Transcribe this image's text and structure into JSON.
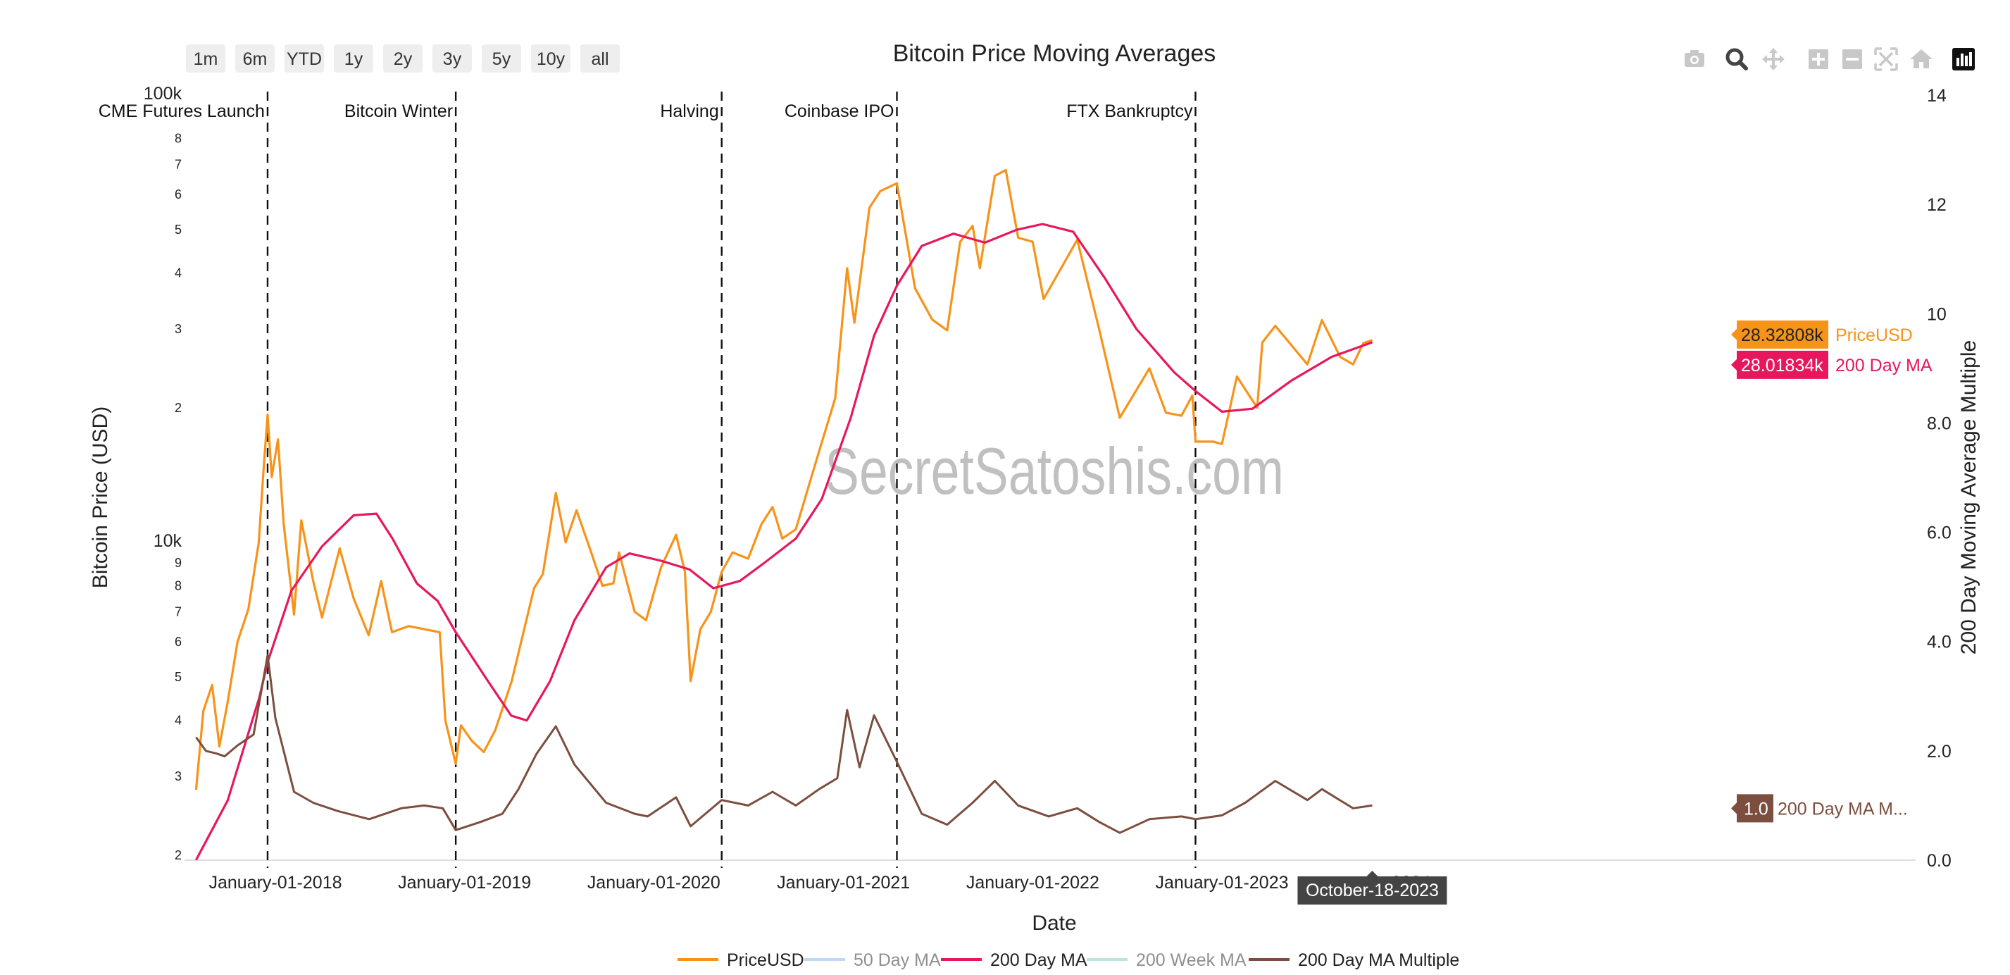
{
  "range_selector": [
    "1m",
    "6m",
    "YTD",
    "1y",
    "2y",
    "3y",
    "5y",
    "10y",
    "all"
  ],
  "modebar": [
    "camera-icon",
    "zoom-icon",
    "pan-icon",
    "zoom-in-icon",
    "zoom-out-icon",
    "autoscale-icon",
    "reset-axes-icon",
    "plotly-logo-icon"
  ],
  "watermark": "SecretSatoshis.com",
  "hover": {
    "price_value": "28.32808k",
    "price_name": "PriceUSD",
    "ma_value": "28.01834k",
    "ma_name": "200 Day MA",
    "mult_value": "1.0",
    "mult_name": "200 Day MA M...",
    "date": "October-18-2023"
  },
  "colors": {
    "price": "#f7931a",
    "ma50": "#7fb2f0",
    "ma200": "#e8175d",
    "ma200w": "#7fc8c0",
    "multiple": "#7b4e3f",
    "hover_date_bg": "#444444"
  },
  "chart_data": {
    "type": "line",
    "title": "Bitcoin Price Moving Averages",
    "xlabel": "Date",
    "ylabel": "Bitcoin Price (USD)",
    "y2label": "200 Day Moving Average Multiple",
    "x_tick_labels": [
      "January-01-2018",
      "January-01-2019",
      "January-01-2020",
      "January-01-2021",
      "January-01-2022",
      "January-01-2023",
      "2024"
    ],
    "y_scale": "log",
    "y_tick_labels": [
      "2",
      "3",
      "4",
      "5",
      "6",
      "7",
      "8",
      "9",
      "10k",
      "2",
      "3",
      "4",
      "5",
      "6",
      "7",
      "8",
      "100k"
    ],
    "y2_tick_labels": [
      "0.0",
      "2.0",
      "4.0",
      "6.0",
      "8.0",
      "10",
      "12",
      "14"
    ],
    "y2lim": [
      0,
      14
    ],
    "legend_position": "bottom",
    "legend": [
      "PriceUSD",
      "50 Day MA",
      "200 Day MA",
      "200 Week MA",
      "200 Day MA Multiple"
    ],
    "events": [
      {
        "label": "CME Futures Launch",
        "date": "2017-12-17"
      },
      {
        "label": "Bitcoin Winter",
        "date": "2018-12-15"
      },
      {
        "label": "Halving",
        "date": "2020-05-11"
      },
      {
        "label": "Coinbase IPO",
        "date": "2021-04-14"
      },
      {
        "label": "FTX Bankruptcy",
        "date": "2022-11-11"
      }
    ],
    "series": [
      {
        "name": "PriceUSD",
        "axis": "y",
        "points": [
          [
            "2017-08-01",
            2800
          ],
          [
            "2017-08-15",
            4200
          ],
          [
            "2017-09-01",
            4800
          ],
          [
            "2017-09-15",
            3500
          ],
          [
            "2017-10-01",
            4400
          ],
          [
            "2017-10-20",
            6000
          ],
          [
            "2017-11-10",
            7100
          ],
          [
            "2017-11-30",
            10000
          ],
          [
            "2017-12-10",
            15000
          ],
          [
            "2017-12-17",
            19300
          ],
          [
            "2017-12-25",
            14000
          ],
          [
            "2018-01-06",
            17000
          ],
          [
            "2018-01-17",
            11000
          ],
          [
            "2018-02-06",
            6900
          ],
          [
            "2018-02-20",
            11200
          ],
          [
            "2018-03-15",
            8200
          ],
          [
            "2018-04-01",
            6800
          ],
          [
            "2018-05-05",
            9700
          ],
          [
            "2018-06-01",
            7500
          ],
          [
            "2018-06-30",
            6200
          ],
          [
            "2018-07-24",
            8200
          ],
          [
            "2018-08-14",
            6300
          ],
          [
            "2018-09-15",
            6500
          ],
          [
            "2018-10-15",
            6400
          ],
          [
            "2018-11-14",
            6300
          ],
          [
            "2018-11-25",
            4000
          ],
          [
            "2018-12-15",
            3200
          ],
          [
            "2018-12-25",
            3900
          ],
          [
            "2019-01-15",
            3600
          ],
          [
            "2019-02-07",
            3400
          ],
          [
            "2019-03-01",
            3800
          ],
          [
            "2019-04-02",
            4900
          ],
          [
            "2019-05-15",
            7900
          ],
          [
            "2019-06-01",
            8500
          ],
          [
            "2019-06-26",
            12900
          ],
          [
            "2019-07-15",
            10000
          ],
          [
            "2019-08-05",
            11800
          ],
          [
            "2019-09-01",
            9600
          ],
          [
            "2019-09-24",
            8000
          ],
          [
            "2019-10-15",
            8100
          ],
          [
            "2019-10-26",
            9500
          ],
          [
            "2019-11-25",
            7000
          ],
          [
            "2019-12-17",
            6700
          ],
          [
            "2020-01-15",
            8800
          ],
          [
            "2020-02-13",
            10400
          ],
          [
            "2020-03-01",
            8600
          ],
          [
            "2020-03-12",
            4900
          ],
          [
            "2020-03-31",
            6400
          ],
          [
            "2020-04-20",
            7000
          ],
          [
            "2020-05-11",
            8600
          ],
          [
            "2020-06-01",
            9500
          ],
          [
            "2020-07-01",
            9200
          ],
          [
            "2020-07-27",
            11000
          ],
          [
            "2020-08-17",
            12000
          ],
          [
            "2020-09-05",
            10200
          ],
          [
            "2020-10-01",
            10700
          ],
          [
            "2020-10-21",
            12800
          ],
          [
            "2020-11-15",
            16000
          ],
          [
            "2020-12-16",
            21000
          ],
          [
            "2021-01-08",
            41000
          ],
          [
            "2021-01-22",
            31000
          ],
          [
            "2021-02-20",
            56000
          ],
          [
            "2021-03-13",
            61000
          ],
          [
            "2021-04-14",
            63500
          ],
          [
            "2021-05-19",
            37000
          ],
          [
            "2021-06-21",
            31500
          ],
          [
            "2021-07-20",
            29800
          ],
          [
            "2021-08-14",
            47000
          ],
          [
            "2021-09-07",
            51000
          ],
          [
            "2021-09-21",
            41000
          ],
          [
            "2021-10-20",
            66000
          ],
          [
            "2021-11-10",
            68000
          ],
          [
            "2021-12-04",
            48000
          ],
          [
            "2022-01-01",
            47000
          ],
          [
            "2022-01-22",
            35000
          ],
          [
            "2022-03-28",
            47500
          ],
          [
            "2022-05-09",
            30000
          ],
          [
            "2022-06-18",
            19000
          ],
          [
            "2022-08-14",
            24500
          ],
          [
            "2022-09-15",
            19500
          ],
          [
            "2022-10-15",
            19200
          ],
          [
            "2022-11-05",
            21300
          ],
          [
            "2022-11-11",
            16800
          ],
          [
            "2022-12-15",
            16800
          ],
          [
            "2023-01-01",
            16600
          ],
          [
            "2023-01-30",
            23500
          ],
          [
            "2023-03-10",
            20000
          ],
          [
            "2023-03-20",
            28000
          ],
          [
            "2023-04-14",
            30500
          ],
          [
            "2023-06-15",
            25000
          ],
          [
            "2023-07-13",
            31400
          ],
          [
            "2023-08-17",
            26000
          ],
          [
            "2023-09-11",
            25000
          ],
          [
            "2023-10-01",
            27900
          ],
          [
            "2023-10-18",
            28328
          ]
        ]
      },
      {
        "name": "200 Day MA",
        "axis": "y",
        "points": [
          [
            "2017-08-01",
            1950
          ],
          [
            "2017-10-01",
            2650
          ],
          [
            "2017-12-01",
            4500
          ],
          [
            "2017-12-17",
            5400
          ],
          [
            "2018-02-01",
            7800
          ],
          [
            "2018-04-01",
            9800
          ],
          [
            "2018-06-01",
            11500
          ],
          [
            "2018-07-15",
            11600
          ],
          [
            "2018-08-15",
            10200
          ],
          [
            "2018-10-01",
            8100
          ],
          [
            "2018-11-10",
            7400
          ],
          [
            "2018-12-15",
            6300
          ],
          [
            "2019-02-15",
            4900
          ],
          [
            "2019-04-01",
            4100
          ],
          [
            "2019-05-01",
            4000
          ],
          [
            "2019-06-15",
            4900
          ],
          [
            "2019-08-01",
            6700
          ],
          [
            "2019-10-01",
            8800
          ],
          [
            "2019-11-15",
            9450
          ],
          [
            "2020-01-15",
            9100
          ],
          [
            "2020-03-10",
            8700
          ],
          [
            "2020-04-25",
            7900
          ],
          [
            "2020-06-15",
            8200
          ],
          [
            "2020-08-01",
            9000
          ],
          [
            "2020-10-01",
            10200
          ],
          [
            "2020-11-20",
            12500
          ],
          [
            "2021-01-15",
            19000
          ],
          [
            "2021-03-01",
            29000
          ],
          [
            "2021-04-14",
            37500
          ],
          [
            "2021-06-01",
            46000
          ],
          [
            "2021-08-01",
            49000
          ],
          [
            "2021-10-01",
            46800
          ],
          [
            "2021-12-01",
            50000
          ],
          [
            "2022-01-20",
            51500
          ],
          [
            "2022-03-20",
            49500
          ],
          [
            "2022-05-20",
            39000
          ],
          [
            "2022-07-20",
            30000
          ],
          [
            "2022-10-01",
            24000
          ],
          [
            "2022-11-11",
            21800
          ],
          [
            "2023-01-01",
            19600
          ],
          [
            "2023-03-01",
            19900
          ],
          [
            "2023-05-15",
            23000
          ],
          [
            "2023-08-01",
            26000
          ],
          [
            "2023-10-18",
            28018
          ]
        ]
      },
      {
        "name": "200 Day MA Multiple",
        "axis": "y2",
        "points": [
          [
            "2017-08-01",
            2.25
          ],
          [
            "2017-08-20",
            2.0
          ],
          [
            "2017-09-10",
            1.95
          ],
          [
            "2017-09-25",
            1.9
          ],
          [
            "2017-10-20",
            2.1
          ],
          [
            "2017-11-20",
            2.3
          ],
          [
            "2017-12-17",
            3.75
          ],
          [
            "2018-01-01",
            2.6
          ],
          [
            "2018-02-06",
            1.25
          ],
          [
            "2018-03-15",
            1.05
          ],
          [
            "2018-05-01",
            0.9
          ],
          [
            "2018-07-01",
            0.75
          ],
          [
            "2018-09-01",
            0.95
          ],
          [
            "2018-10-15",
            1.0
          ],
          [
            "2018-11-20",
            0.95
          ],
          [
            "2018-12-15",
            0.55
          ],
          [
            "2019-02-01",
            0.7
          ],
          [
            "2019-03-15",
            0.85
          ],
          [
            "2019-04-15",
            1.3
          ],
          [
            "2019-05-20",
            1.95
          ],
          [
            "2019-06-26",
            2.45
          ],
          [
            "2019-08-01",
            1.75
          ],
          [
            "2019-10-01",
            1.05
          ],
          [
            "2019-11-25",
            0.85
          ],
          [
            "2019-12-20",
            0.8
          ],
          [
            "2020-02-13",
            1.15
          ],
          [
            "2020-03-12",
            0.62
          ],
          [
            "2020-05-11",
            1.1
          ],
          [
            "2020-07-01",
            1.0
          ],
          [
            "2020-08-17",
            1.25
          ],
          [
            "2020-10-01",
            1.0
          ],
          [
            "2020-11-15",
            1.3
          ],
          [
            "2020-12-20",
            1.5
          ],
          [
            "2021-01-08",
            2.75
          ],
          [
            "2021-02-01",
            1.7
          ],
          [
            "2021-03-01",
            2.65
          ],
          [
            "2021-04-14",
            1.8
          ],
          [
            "2021-06-01",
            0.85
          ],
          [
            "2021-07-20",
            0.65
          ],
          [
            "2021-09-07",
            1.05
          ],
          [
            "2021-10-20",
            1.45
          ],
          [
            "2021-12-04",
            1.0
          ],
          [
            "2022-02-01",
            0.8
          ],
          [
            "2022-03-28",
            0.95
          ],
          [
            "2022-05-09",
            0.7
          ],
          [
            "2022-06-18",
            0.5
          ],
          [
            "2022-08-14",
            0.75
          ],
          [
            "2022-10-15",
            0.8
          ],
          [
            "2022-11-11",
            0.75
          ],
          [
            "2023-01-01",
            0.82
          ],
          [
            "2023-02-15",
            1.05
          ],
          [
            "2023-04-14",
            1.45
          ],
          [
            "2023-06-15",
            1.1
          ],
          [
            "2023-07-13",
            1.3
          ],
          [
            "2023-09-11",
            0.95
          ],
          [
            "2023-10-18",
            1.0
          ]
        ]
      }
    ]
  }
}
